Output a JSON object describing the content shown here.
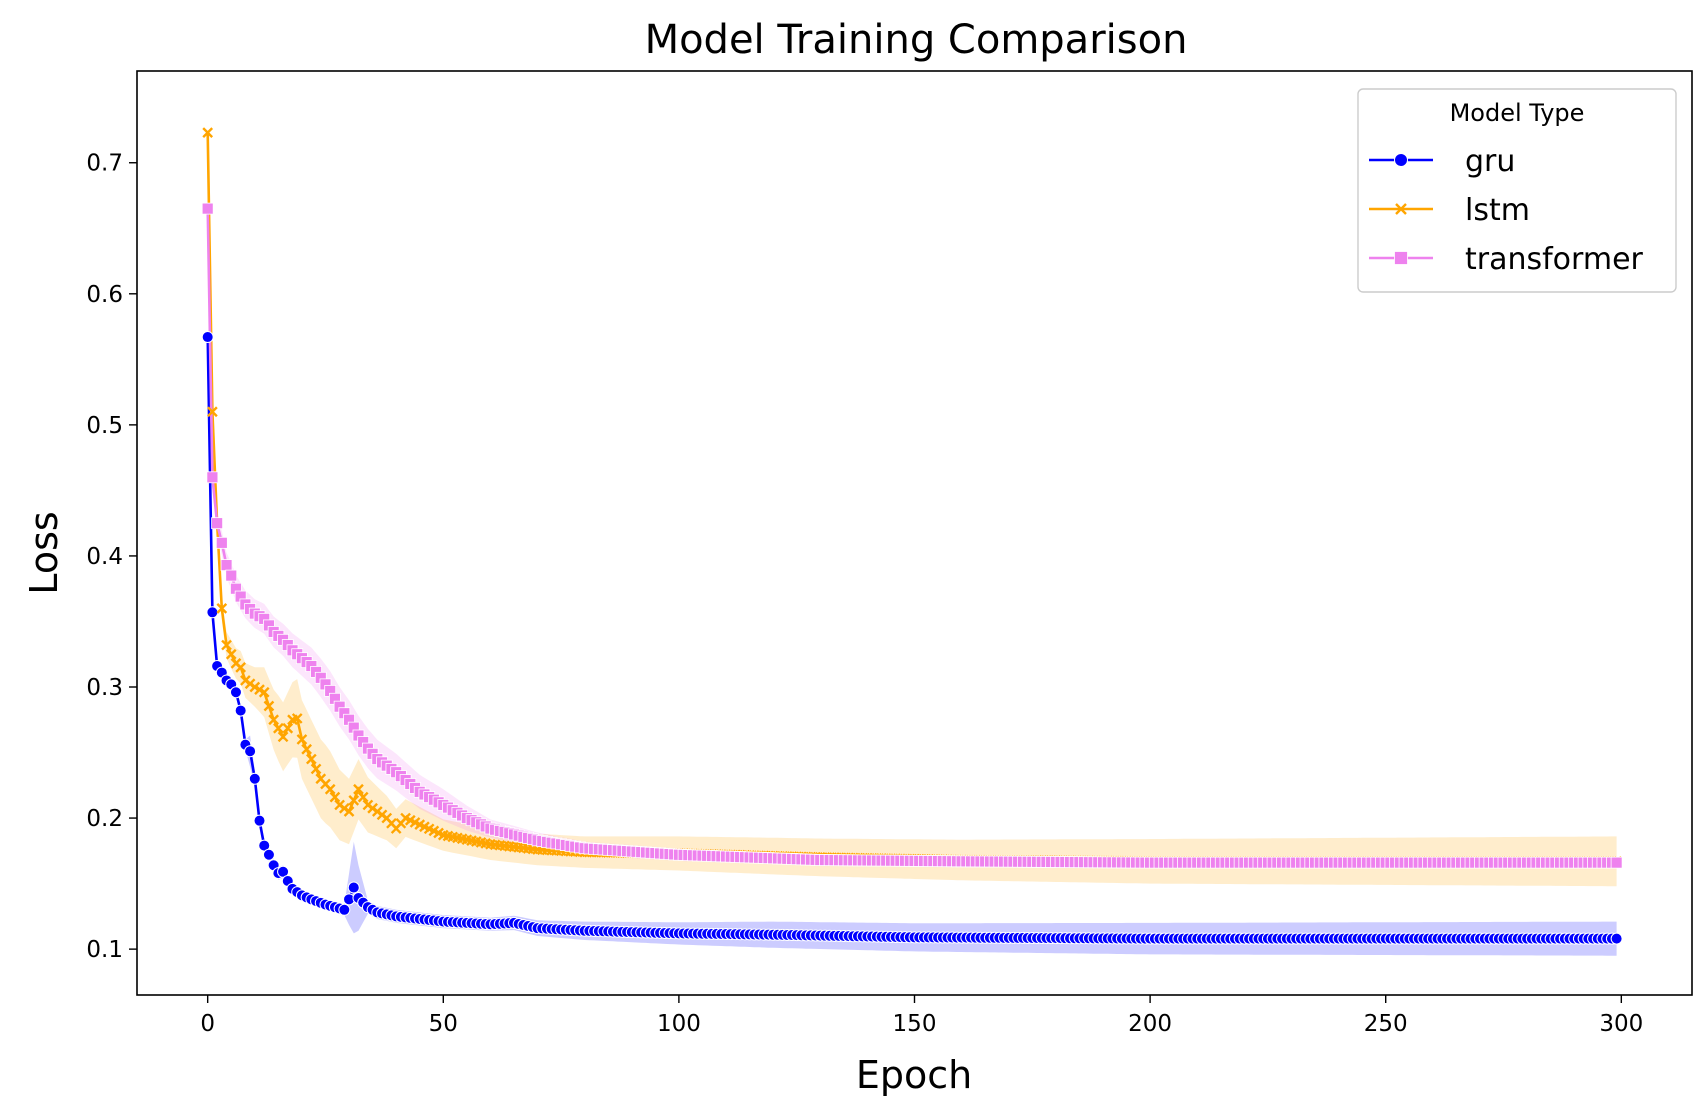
{
  "chart_data": {
    "type": "line",
    "title": "Model Training Comparison",
    "xlabel": "Epoch",
    "ylabel": "Loss",
    "xlim": [
      -15,
      315
    ],
    "ylim": [
      0.065,
      0.77
    ],
    "xticks": [
      0,
      50,
      100,
      150,
      200,
      250,
      300
    ],
    "yticks": [
      0.1,
      0.2,
      0.3,
      0.4,
      0.5,
      0.6,
      0.7
    ],
    "x_tick_labels": [
      "0",
      "50",
      "100",
      "150",
      "200",
      "250",
      "300"
    ],
    "y_tick_labels": [
      "0.1",
      "0.2",
      "0.3",
      "0.4",
      "0.5",
      "0.6",
      "0.7"
    ],
    "grid": false,
    "confidence_band": true,
    "legend": {
      "title": "Model Type",
      "position": "top-right"
    },
    "epochs": {
      "start": 0,
      "end": 299
    },
    "series": [
      {
        "name": "gru",
        "color": "#0000ff",
        "marker": "circle",
        "knots": [
          [
            0,
            0.567
          ],
          [
            1,
            0.357
          ],
          [
            2,
            0.316
          ],
          [
            3,
            0.311
          ],
          [
            4,
            0.305
          ],
          [
            5,
            0.302
          ],
          [
            6,
            0.296
          ],
          [
            7,
            0.282
          ],
          [
            8,
            0.256
          ],
          [
            9,
            0.251
          ],
          [
            10,
            0.23
          ],
          [
            11,
            0.198
          ],
          [
            12,
            0.179
          ],
          [
            13,
            0.172
          ],
          [
            14,
            0.164
          ],
          [
            15,
            0.158
          ],
          [
            16,
            0.159
          ],
          [
            17,
            0.152
          ],
          [
            18,
            0.146
          ],
          [
            20,
            0.141
          ],
          [
            22,
            0.138
          ],
          [
            25,
            0.134
          ],
          [
            28,
            0.131
          ],
          [
            29,
            0.13
          ],
          [
            30,
            0.138
          ],
          [
            31,
            0.147
          ],
          [
            32,
            0.139
          ],
          [
            34,
            0.132
          ],
          [
            36,
            0.128
          ],
          [
            40,
            0.125
          ],
          [
            45,
            0.123
          ],
          [
            50,
            0.121
          ],
          [
            60,
            0.119
          ],
          [
            65,
            0.12
          ],
          [
            70,
            0.116
          ],
          [
            80,
            0.114
          ],
          [
            100,
            0.112
          ],
          [
            120,
            0.111
          ],
          [
            150,
            0.109
          ],
          [
            200,
            0.108
          ],
          [
            250,
            0.108
          ],
          [
            299,
            0.108
          ]
        ],
        "band_halfwidth": [
          [
            0,
            0.004
          ],
          [
            8,
            0.004
          ],
          [
            9,
            0.012
          ],
          [
            10,
            0.006
          ],
          [
            20,
            0.004
          ],
          [
            29,
            0.004
          ],
          [
            31,
            0.035
          ],
          [
            34,
            0.005
          ],
          [
            60,
            0.005
          ],
          [
            80,
            0.007
          ],
          [
            120,
            0.01
          ],
          [
            200,
            0.012
          ],
          [
            299,
            0.013
          ]
        ]
      },
      {
        "name": "lstm",
        "color": "#ffa500",
        "marker": "x",
        "knots": [
          [
            0,
            0.723
          ],
          [
            1,
            0.51
          ],
          [
            2,
            0.425
          ],
          [
            3,
            0.36
          ],
          [
            4,
            0.332
          ],
          [
            5,
            0.325
          ],
          [
            6,
            0.318
          ],
          [
            7,
            0.315
          ],
          [
            8,
            0.305
          ],
          [
            10,
            0.3
          ],
          [
            12,
            0.296
          ],
          [
            14,
            0.275
          ],
          [
            16,
            0.262
          ],
          [
            18,
            0.275
          ],
          [
            19,
            0.276
          ],
          [
            20,
            0.26
          ],
          [
            22,
            0.245
          ],
          [
            24,
            0.23
          ],
          [
            26,
            0.222
          ],
          [
            28,
            0.21
          ],
          [
            30,
            0.205
          ],
          [
            32,
            0.222
          ],
          [
            34,
            0.21
          ],
          [
            38,
            0.2
          ],
          [
            40,
            0.192
          ],
          [
            42,
            0.2
          ],
          [
            45,
            0.195
          ],
          [
            50,
            0.187
          ],
          [
            60,
            0.18
          ],
          [
            70,
            0.176
          ],
          [
            80,
            0.174
          ],
          [
            100,
            0.173
          ],
          [
            130,
            0.17
          ],
          [
            160,
            0.168
          ],
          [
            200,
            0.167
          ],
          [
            250,
            0.167
          ],
          [
            299,
            0.167
          ]
        ],
        "band_halfwidth": [
          [
            0,
            0.004
          ],
          [
            4,
            0.01
          ],
          [
            10,
            0.015
          ],
          [
            15,
            0.025
          ],
          [
            19,
            0.03
          ],
          [
            25,
            0.03
          ],
          [
            30,
            0.025
          ],
          [
            40,
            0.015
          ],
          [
            50,
            0.012
          ],
          [
            80,
            0.012
          ],
          [
            120,
            0.014
          ],
          [
            200,
            0.017
          ],
          [
            299,
            0.019
          ]
        ]
      },
      {
        "name": "transformer",
        "color": "#ee82ee",
        "marker": "square",
        "knots": [
          [
            0,
            0.665
          ],
          [
            1,
            0.46
          ],
          [
            2,
            0.425
          ],
          [
            3,
            0.41
          ],
          [
            4,
            0.393
          ],
          [
            5,
            0.385
          ],
          [
            6,
            0.375
          ],
          [
            8,
            0.363
          ],
          [
            10,
            0.356
          ],
          [
            12,
            0.352
          ],
          [
            14,
            0.342
          ],
          [
            16,
            0.336
          ],
          [
            18,
            0.328
          ],
          [
            20,
            0.322
          ],
          [
            22,
            0.316
          ],
          [
            24,
            0.307
          ],
          [
            26,
            0.297
          ],
          [
            28,
            0.285
          ],
          [
            30,
            0.275
          ],
          [
            32,
            0.263
          ],
          [
            34,
            0.253
          ],
          [
            36,
            0.245
          ],
          [
            40,
            0.235
          ],
          [
            45,
            0.22
          ],
          [
            50,
            0.21
          ],
          [
            55,
            0.2
          ],
          [
            60,
            0.192
          ],
          [
            70,
            0.183
          ],
          [
            80,
            0.177
          ],
          [
            100,
            0.172
          ],
          [
            130,
            0.168
          ],
          [
            160,
            0.167
          ],
          [
            200,
            0.166
          ],
          [
            250,
            0.166
          ],
          [
            299,
            0.166
          ]
        ],
        "band_halfwidth": [
          [
            0,
            0.008
          ],
          [
            5,
            0.01
          ],
          [
            15,
            0.012
          ],
          [
            25,
            0.015
          ],
          [
            35,
            0.015
          ],
          [
            50,
            0.012
          ],
          [
            60,
            0.007
          ],
          [
            80,
            0.005
          ],
          [
            150,
            0.004
          ],
          [
            299,
            0.004
          ]
        ]
      }
    ]
  }
}
